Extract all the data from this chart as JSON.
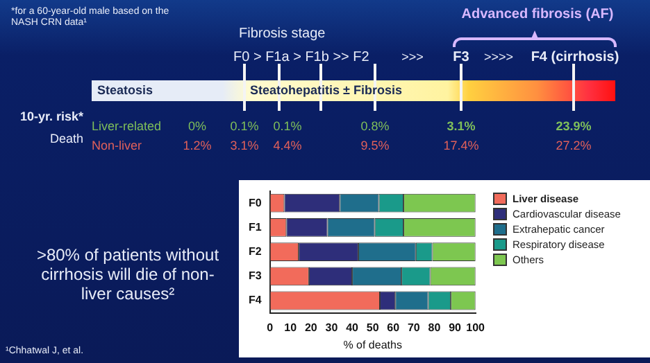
{
  "chart_data": {
    "type": "bar",
    "orientation": "horizontal",
    "stacked": true,
    "categories": [
      "F0",
      "F1",
      "F2",
      "F3",
      "F4"
    ],
    "series": [
      {
        "name": "Liver disease",
        "color": "#f26b5b",
        "values": [
          7,
          8,
          14,
          19,
          53.5
        ]
      },
      {
        "name": "Cardiovascular disease",
        "color": "#2e2e7a",
        "values": [
          27,
          20,
          29,
          21,
          7.5
        ]
      },
      {
        "name": "Extrahepatic cancer",
        "color": "#1f6e8c",
        "values": [
          19,
          23,
          28,
          24,
          16
        ]
      },
      {
        "name": "Respiratory disease",
        "color": "#1a9a8a",
        "values": [
          12,
          14,
          8,
          14,
          11
        ]
      },
      {
        "name": "Others",
        "color": "#7dc750",
        "values": [
          35,
          35,
          21,
          22,
          12
        ]
      }
    ],
    "xlim": [
      0,
      100
    ],
    "xticks": [
      0,
      10,
      20,
      30,
      40,
      50,
      60,
      70,
      80,
      90,
      100
    ],
    "xlabel": "% of deaths",
    "legend": "right",
    "grid": false,
    "annotations": [
      "*for a 60-year-old male based on the NASH CRN data¹",
      "Fibrosis stage",
      "Advanced fibrosis (AF)",
      "F0 > F1a > F1b  >>  F2",
      ">>>",
      "F3",
      ">>>>",
      "F4 (cirrhosis)",
      "Steatosis",
      "Steatohepatitis ± Fibrosis",
      "10-yr. risk*",
      "Death",
      "Liver-related",
      "0%",
      "0.1%",
      "0.1%",
      "0.8%",
      "3.1%",
      "23.9%",
      "Non-liver",
      "1.2%",
      "3.1%",
      "4.4%",
      "9.5%",
      "17.4%",
      "27.2%",
      ">80% of patients without cirrhosis will die of non-liver causes²",
      "¹Chhatwal J, et al."
    ]
  }
}
